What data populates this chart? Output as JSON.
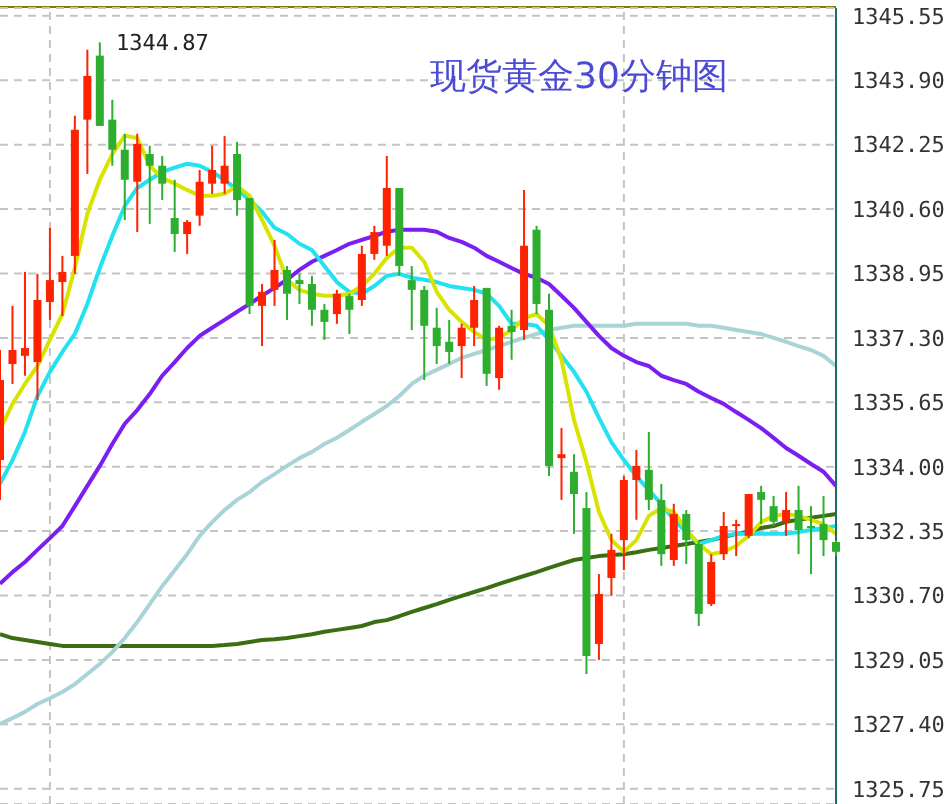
{
  "chart_data": {
    "type": "candlestick",
    "title": "现货黄金30分钟图",
    "categories": [
      null,
      null,
      null,
      null,
      null,
      null,
      null,
      null,
      null,
      null,
      null,
      null,
      null,
      null,
      null,
      null,
      null,
      null,
      null,
      null,
      null,
      null,
      null,
      null,
      null,
      null,
      null,
      null,
      null,
      null,
      null,
      null,
      null,
      null,
      null,
      null,
      null,
      null,
      null,
      null,
      null,
      null,
      null,
      null,
      null,
      null,
      null,
      null,
      null,
      null,
      null,
      null,
      null,
      null,
      null,
      null,
      null,
      null,
      null,
      null,
      null,
      null,
      null,
      null,
      null,
      null,
      null,
      null
    ],
    "ohlc": [
      [
        1334.17,
        1336.99,
        1333.15,
        1336.22
      ],
      [
        1336.63,
        1338.12,
        1336.12,
        1336.99
      ],
      [
        1336.84,
        1338.99,
        1336.33,
        1337.04
      ],
      [
        1336.68,
        1338.94,
        1335.71,
        1338.27
      ],
      [
        1338.22,
        1340.12,
        1337.76,
        1338.78
      ],
      [
        1338.73,
        1339.4,
        1337.86,
        1338.99
      ],
      [
        1339.4,
        1342.99,
        1338.94,
        1342.63
      ],
      [
        1342.89,
        1344.68,
        1341.5,
        1344.01
      ],
      [
        1344.53,
        1344.87,
        1342.73,
        1342.73
      ],
      [
        1342.89,
        1343.4,
        1341.71,
        1342.12
      ],
      [
        1342.12,
        1342.53,
        1340.32,
        1341.35
      ],
      [
        1341.3,
        1342.53,
        1340.01,
        1342.27
      ],
      [
        1342.01,
        1342.22,
        1340.22,
        1341.71
      ],
      [
        1341.71,
        1341.96,
        1340.83,
        1341.25
      ],
      [
        1340.37,
        1341.35,
        1339.5,
        1339.96
      ],
      [
        1339.96,
        1340.32,
        1339.45,
        1340.27
      ],
      [
        1340.43,
        1341.6,
        1340.17,
        1341.3
      ],
      [
        1341.25,
        1342.22,
        1340.99,
        1341.6
      ],
      [
        1341.25,
        1342.47,
        1340.99,
        1341.71
      ],
      [
        1342.01,
        1342.32,
        1340.43,
        1340.83
      ],
      [
        1340.88,
        1340.88,
        1337.91,
        1338.12
      ],
      [
        1338.12,
        1338.68,
        1337.09,
        1338.48
      ],
      [
        1338.53,
        1339.81,
        1338.12,
        1339.04
      ],
      [
        1339.04,
        1339.14,
        1337.76,
        1338.43
      ],
      [
        1338.78,
        1338.94,
        1338.17,
        1338.68
      ],
      [
        1338.68,
        1338.89,
        1337.61,
        1338.02
      ],
      [
        1338.02,
        1338.17,
        1337.25,
        1337.71
      ],
      [
        1337.91,
        1338.53,
        1337.66,
        1338.43
      ],
      [
        1338.37,
        1338.43,
        1337.4,
        1338.02
      ],
      [
        1338.27,
        1339.66,
        1338.12,
        1339.45
      ],
      [
        1339.45,
        1340.17,
        1339.3,
        1340.01
      ],
      [
        1339.66,
        1341.96,
        1339.4,
        1341.14
      ],
      [
        1341.14,
        1341.14,
        1338.89,
        1339.14
      ],
      [
        1338.78,
        1339.14,
        1337.5,
        1338.53
      ],
      [
        1338.53,
        1338.63,
        1336.22,
        1337.61
      ],
      [
        1337.56,
        1338.07,
        1336.63,
        1337.09
      ],
      [
        1337.2,
        1337.76,
        1336.63,
        1336.94
      ],
      [
        1337.09,
        1337.66,
        1336.27,
        1337.56
      ],
      [
        1337.56,
        1338.63,
        1337.09,
        1338.27
      ],
      [
        1338.58,
        1338.58,
        1336.07,
        1336.38
      ],
      [
        1336.27,
        1337.61,
        1335.97,
        1337.56
      ],
      [
        1337.61,
        1338.02,
        1336.74,
        1337.45
      ],
      [
        1337.5,
        1341.09,
        1337.25,
        1339.66
      ],
      [
        1340.07,
        1340.17,
        1337.91,
        1338.17
      ],
      [
        1338.02,
        1338.43,
        1333.76,
        1334.02
      ],
      [
        1334.22,
        1334.99,
        1333.15,
        1334.32
      ],
      [
        1333.87,
        1334.32,
        1332.28,
        1333.3
      ],
      [
        1332.94,
        1333.35,
        1328.69,
        1329.15
      ],
      [
        1329.46,
        1331.25,
        1329.05,
        1330.74
      ],
      [
        1331.15,
        1332.28,
        1330.69,
        1331.87
      ],
      [
        1332.12,
        1333.76,
        1331.35,
        1333.66
      ],
      [
        1333.66,
        1334.43,
        1332.64,
        1334.02
      ],
      [
        1333.92,
        1334.89,
        1332.89,
        1333.15
      ],
      [
        1333.15,
        1333.56,
        1331.46,
        1331.76
      ],
      [
        1331.61,
        1333.05,
        1331.46,
        1332.79
      ],
      [
        1332.79,
        1332.89,
        1331.51,
        1332.12
      ],
      [
        1332.02,
        1332.12,
        1329.92,
        1330.23
      ],
      [
        1330.48,
        1331.76,
        1330.43,
        1331.56
      ],
      [
        1331.76,
        1332.84,
        1331.61,
        1332.48
      ],
      [
        1332.48,
        1332.64,
        1331.71,
        1332.53
      ],
      [
        1332.23,
        1333.3,
        1332.17,
        1333.3
      ],
      [
        1333.35,
        1333.51,
        1332.53,
        1333.15
      ],
      [
        1332.99,
        1333.25,
        1332.48,
        1332.59
      ],
      [
        1332.59,
        1333.35,
        1332.23,
        1332.89
      ],
      [
        1332.89,
        1333.51,
        1331.76,
        1332.38
      ],
      [
        1332.48,
        1332.99,
        1331.25,
        1332.43
      ],
      [
        1332.53,
        1333.25,
        1331.71,
        1332.12
      ],
      [
        1332.07,
        1332.12,
        1331.71,
        1331.82
      ]
    ],
    "colors": [
      "#ff2200",
      "#ff2200",
      "#ff2200",
      "#ff2200",
      "#ff2200",
      "#ff2200",
      "#ff2200",
      "#ff2200",
      "#2eae2e",
      "#2eae2e",
      "#2eae2e",
      "#ff2200",
      "#2eae2e",
      "#2eae2e",
      "#2eae2e",
      "#ff2200",
      "#ff2200",
      "#ff2200",
      "#ff2200",
      "#2eae2e",
      "#2eae2e",
      "#ff2200",
      "#ff2200",
      "#2eae2e",
      "#2eae2e",
      "#2eae2e",
      "#2eae2e",
      "#ff2200",
      "#2eae2e",
      "#ff2200",
      "#ff2200",
      "#ff2200",
      "#2eae2e",
      "#2eae2e",
      "#2eae2e",
      "#2eae2e",
      "#2eae2e",
      "#ff2200",
      "#ff2200",
      "#2eae2e",
      "#ff2200",
      "#2eae2e",
      "#ff2200",
      "#2eae2e",
      "#2eae2e",
      "#ff2200",
      "#2eae2e",
      "#2eae2e",
      "#ff2200",
      "#ff2200",
      "#ff2200",
      "#ff2200",
      "#2eae2e",
      "#2eae2e",
      "#ff2200",
      "#2eae2e",
      "#2eae2e",
      "#ff2200",
      "#ff2200",
      "#ff2200",
      "#ff2200",
      "#2eae2e",
      "#2eae2e",
      "#ff2200",
      "#2eae2e",
      "#2eae2e",
      "#2eae2e",
      "#2eae2e"
    ],
    "series": [
      {
        "type": "line",
        "color": "#3b6e12",
        "values": [
          1329.71,
          1329.61,
          1329.56,
          1329.51,
          1329.46,
          1329.41,
          1329.41,
          1329.41,
          1329.41,
          1329.41,
          1329.41,
          1329.41,
          1329.41,
          1329.41,
          1329.41,
          1329.41,
          1329.41,
          1329.41,
          1329.43,
          1329.46,
          1329.51,
          1329.56,
          1329.58,
          1329.61,
          1329.66,
          1329.71,
          1329.77,
          1329.82,
          1329.87,
          1329.92,
          1330.02,
          1330.07,
          1330.17,
          1330.28,
          1330.38,
          1330.48,
          1330.59,
          1330.69,
          1330.79,
          1330.89,
          1331.0,
          1331.1,
          1331.2,
          1331.3,
          1331.41,
          1331.51,
          1331.61,
          1331.66,
          1331.71,
          1331.74,
          1331.76,
          1331.81,
          1331.87,
          1331.92,
          1331.97,
          1332.02,
          1332.07,
          1332.12,
          1332.2,
          1332.28,
          1332.33,
          1332.43,
          1332.48,
          1332.59,
          1332.64,
          1332.69,
          1332.74,
          1332.79
        ]
      },
      {
        "type": "line",
        "color": "#a8d4d8",
        "values": [
          1327.41,
          1327.56,
          1327.72,
          1327.92,
          1328.07,
          1328.23,
          1328.43,
          1328.69,
          1328.95,
          1329.25,
          1329.61,
          1330.02,
          1330.48,
          1330.94,
          1331.35,
          1331.76,
          1332.23,
          1332.58,
          1332.89,
          1333.15,
          1333.35,
          1333.61,
          1333.81,
          1334.02,
          1334.22,
          1334.38,
          1334.58,
          1334.74,
          1334.94,
          1335.15,
          1335.35,
          1335.56,
          1335.81,
          1336.12,
          1336.33,
          1336.48,
          1336.63,
          1336.79,
          1336.89,
          1336.99,
          1337.09,
          1337.2,
          1337.3,
          1337.4,
          1337.5,
          1337.56,
          1337.61,
          1337.61,
          1337.61,
          1337.61,
          1337.61,
          1337.66,
          1337.66,
          1337.66,
          1337.66,
          1337.66,
          1337.61,
          1337.61,
          1337.56,
          1337.5,
          1337.45,
          1337.4,
          1337.3,
          1337.2,
          1337.09,
          1336.99,
          1336.84,
          1336.58
        ]
      },
      {
        "type": "line",
        "color": "#7b1ef2",
        "values": [
          1331.0,
          1331.3,
          1331.56,
          1331.87,
          1332.17,
          1332.48,
          1332.99,
          1333.51,
          1334.02,
          1334.58,
          1335.1,
          1335.45,
          1335.86,
          1336.33,
          1336.68,
          1337.04,
          1337.35,
          1337.56,
          1337.76,
          1337.97,
          1338.17,
          1338.38,
          1338.58,
          1338.79,
          1339.04,
          1339.25,
          1339.4,
          1339.55,
          1339.71,
          1339.81,
          1339.91,
          1340.02,
          1340.07,
          1340.07,
          1340.07,
          1340.02,
          1339.86,
          1339.76,
          1339.61,
          1339.4,
          1339.25,
          1339.09,
          1338.94,
          1338.84,
          1338.68,
          1338.38,
          1338.07,
          1337.71,
          1337.35,
          1337.04,
          1336.84,
          1336.68,
          1336.58,
          1336.33,
          1336.22,
          1336.12,
          1335.92,
          1335.76,
          1335.61,
          1335.4,
          1335.2,
          1334.99,
          1334.74,
          1334.48,
          1334.28,
          1334.07,
          1333.87,
          1333.51
        ]
      },
      {
        "type": "line",
        "color": "#22e2f0",
        "values": [
          1333.56,
          1334.17,
          1334.89,
          1335.81,
          1336.43,
          1336.94,
          1337.4,
          1338.17,
          1339.09,
          1339.91,
          1340.68,
          1341.14,
          1341.35,
          1341.55,
          1341.66,
          1341.76,
          1341.71,
          1341.55,
          1341.35,
          1341.09,
          1340.84,
          1340.53,
          1340.12,
          1339.96,
          1339.71,
          1339.55,
          1339.14,
          1338.73,
          1338.48,
          1338.43,
          1338.63,
          1338.89,
          1338.94,
          1338.84,
          1338.79,
          1338.73,
          1338.63,
          1338.58,
          1338.53,
          1338.43,
          1338.12,
          1337.66,
          1337.66,
          1337.61,
          1337.25,
          1336.84,
          1336.43,
          1335.92,
          1335.25,
          1334.63,
          1334.17,
          1333.76,
          1333.4,
          1333.05,
          1332.64,
          1332.33,
          1332.02,
          1332.12,
          1332.23,
          1332.28,
          1332.28,
          1332.28,
          1332.28,
          1332.28,
          1332.33,
          1332.38,
          1332.43,
          1332.48
        ]
      },
      {
        "type": "line",
        "color": "#d8e400",
        "values": [
          1334.94,
          1335.61,
          1336.12,
          1336.58,
          1337.25,
          1337.91,
          1339.09,
          1340.48,
          1341.35,
          1342.01,
          1342.48,
          1342.42,
          1341.71,
          1341.4,
          1341.25,
          1341.09,
          1340.94,
          1340.94,
          1340.99,
          1341.19,
          1340.94,
          1340.32,
          1339.66,
          1338.79,
          1338.53,
          1338.43,
          1338.38,
          1338.38,
          1338.43,
          1338.63,
          1338.94,
          1339.35,
          1339.61,
          1339.61,
          1339.25,
          1338.48,
          1338.02,
          1337.71,
          1337.45,
          1337.25,
          1337.3,
          1337.5,
          1337.81,
          1337.91,
          1337.61,
          1336.74,
          1335.2,
          1334.12,
          1332.84,
          1332.12,
          1331.82,
          1332.12,
          1332.74,
          1332.94,
          1332.84,
          1332.38,
          1332.02,
          1331.76,
          1331.82,
          1331.97,
          1332.23,
          1332.58,
          1332.74,
          1332.79,
          1332.74,
          1332.64,
          1332.53,
          1332.28
        ]
      }
    ],
    "annotations": [
      "1344.87"
    ],
    "ylim": [
      1325.36,
      1345.75
    ],
    "yticks": [
      {
        "value": 1325.75,
        "label": "1325.75"
      },
      {
        "value": 1327.4,
        "label": "1327.40"
      },
      {
        "value": 1329.05,
        "label": "1329.05"
      },
      {
        "value": 1330.7,
        "label": "1330.70"
      },
      {
        "value": 1332.35,
        "label": "1332.35"
      },
      {
        "value": 1334,
        "label": "1334.00"
      },
      {
        "value": 1335.65,
        "label": "1335.65"
      },
      {
        "value": 1337.3,
        "label": "1337.30"
      },
      {
        "value": 1338.95,
        "label": "1338.95"
      },
      {
        "value": 1340.6,
        "label": "1340.60"
      },
      {
        "value": 1342.25,
        "label": "1342.25"
      },
      {
        "value": 1343.9,
        "label": "1343.90"
      },
      {
        "value": 1345.55,
        "label": "1345.55"
      }
    ],
    "grid": "y"
  }
}
